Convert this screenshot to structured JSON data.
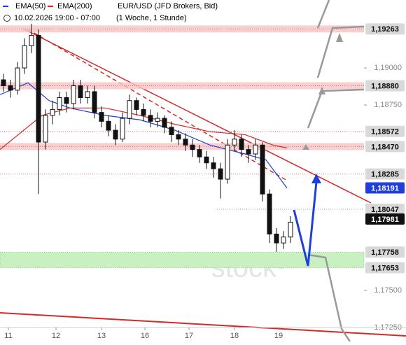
{
  "chart_data": {
    "type": "candlestick",
    "instrument": "EUR/USD (JFD Brokers, Bid)",
    "period": "10.02.2026 19:00 - 07:00",
    "interval": "(1 Woche, 1 Stunde)",
    "watermark": "stock³",
    "xlim": [
      -0.5,
      57.5
    ],
    "ylim": [
      1.17231,
      1.19458
    ],
    "xticks": [
      {
        "value": 0.7,
        "label": "11"
      },
      {
        "value": 7.5,
        "label": "12"
      },
      {
        "value": 14,
        "label": "13"
      },
      {
        "value": 20.2,
        "label": "16"
      },
      {
        "value": 26.5,
        "label": "17"
      },
      {
        "value": 33,
        "label": "18"
      },
      {
        "value": 39.3,
        "label": "19"
      }
    ],
    "yticks": [
      {
        "value": 1.19,
        "label": "1,19000"
      },
      {
        "value": 1.1875,
        "label": "1,18750"
      },
      {
        "value": 1.175,
        "label": "1,17500"
      },
      {
        "value": 1.1725,
        "label": "1,17250"
      }
    ],
    "candles": [
      [
        1.1892,
        1.1896,
        1.1884,
        1.1888
      ],
      [
        1.1888,
        1.1892,
        1.188,
        1.1885
      ],
      [
        1.1885,
        1.1904,
        1.1882,
        1.19
      ],
      [
        1.19,
        1.192,
        1.1896,
        1.1915
      ],
      [
        1.1915,
        1.193,
        1.191,
        1.1922
      ],
      [
        1.1922,
        1.1926,
        1.1815,
        1.185
      ],
      [
        1.185,
        1.1872,
        1.1845,
        1.1868
      ],
      [
        1.1868,
        1.1878,
        1.1862,
        1.1872
      ],
      [
        1.1872,
        1.1884,
        1.1868,
        1.188
      ],
      [
        1.188,
        1.1884,
        1.187,
        1.1876
      ],
      [
        1.1876,
        1.1892,
        1.1872,
        1.1888
      ],
      [
        1.1888,
        1.1892,
        1.1876,
        1.188
      ],
      [
        1.188,
        1.1888,
        1.1876,
        1.1884
      ],
      [
        1.1884,
        1.1888,
        1.1866,
        1.187
      ],
      [
        1.187,
        1.1874,
        1.186,
        1.1864
      ],
      [
        1.1864,
        1.1868,
        1.1854,
        1.1858
      ],
      [
        1.1858,
        1.1862,
        1.1848,
        1.1852
      ],
      [
        1.1852,
        1.187,
        1.185,
        1.1866
      ],
      [
        1.1866,
        1.1882,
        1.1862,
        1.1878
      ],
      [
        1.1878,
        1.188,
        1.1868,
        1.1872
      ],
      [
        1.1872,
        1.1876,
        1.1864,
        1.1868
      ],
      [
        1.1868,
        1.1872,
        1.186,
        1.1864
      ],
      [
        1.1864,
        1.187,
        1.186,
        1.1866
      ],
      [
        1.1866,
        1.1868,
        1.1856,
        1.186
      ],
      [
        1.186,
        1.1864,
        1.185,
        1.1855
      ],
      [
        1.1855,
        1.1858,
        1.1848,
        1.1852
      ],
      [
        1.1852,
        1.1856,
        1.1844,
        1.1848
      ],
      [
        1.1848,
        1.1852,
        1.184,
        1.1845
      ],
      [
        1.1845,
        1.1848,
        1.1836,
        1.184
      ],
      [
        1.184,
        1.1844,
        1.1832,
        1.1836
      ],
      [
        1.1836,
        1.184,
        1.1826,
        1.1832
      ],
      [
        1.1832,
        1.1836,
        1.1812,
        1.1825
      ],
      [
        1.1825,
        1.1852,
        1.1822,
        1.1848
      ],
      [
        1.1848,
        1.1858,
        1.1844,
        1.1852
      ],
      [
        1.1852,
        1.1855,
        1.184,
        1.1845
      ],
      [
        1.1845,
        1.1848,
        1.1836,
        1.1842
      ],
      [
        1.1842,
        1.1852,
        1.1838,
        1.1848
      ],
      [
        1.1848,
        1.185,
        1.181,
        1.1815
      ],
      [
        1.1815,
        1.1818,
        1.1782,
        1.1788
      ],
      [
        1.1788,
        1.1792,
        1.1776,
        1.1782
      ],
      [
        1.1782,
        1.179,
        1.1778,
        1.1786
      ],
      [
        1.1786,
        1.18,
        1.1782,
        1.1796
      ]
    ],
    "up_color": "#ffffff",
    "down_color": "#111111",
    "series": [
      {
        "name": "EMA(50)",
        "color": "#1f3fd8",
        "x": [
          -0.5,
          3.5,
          6.5,
          9.5,
          14.5,
          19.5,
          24.5,
          29.5,
          34.5,
          37.5,
          40.5
        ],
        "values": [
          1.1882,
          1.189,
          1.1878,
          1.1873,
          1.1868,
          1.1865,
          1.1858,
          1.1848,
          1.1842,
          1.1838,
          1.1819
        ]
      },
      {
        "name": "EMA(200)",
        "color": "#d42a2a",
        "x": [
          -0.5,
          5.5,
          9.5,
          14.5,
          19.5,
          24.5,
          29.5,
          34.5,
          38.5,
          40.5
        ],
        "values": [
          1.1845,
          1.1868,
          1.1873,
          1.1873,
          1.1868,
          1.1862,
          1.1857,
          1.1855,
          1.1848,
          1.1846
        ]
      }
    ],
    "levels": [
      {
        "value": 1.19263,
        "label": "1,19263",
        "style": "band",
        "color": "#d9d9d9"
      },
      {
        "value": 1.1888,
        "label": "1,18880",
        "style": "band",
        "color": "#d9d9d9"
      },
      {
        "value": 1.18572,
        "label": "1,18572",
        "style": "line",
        "color": "#d9d9d9"
      },
      {
        "value": 1.1847,
        "label": "1,18470",
        "style": "band",
        "color": "#d9d9d9"
      },
      {
        "value": 1.18285,
        "label": "1,18285",
        "style": "line",
        "color": "#d9d9d9"
      },
      {
        "value": 1.18191,
        "label": "1,18191",
        "style": "none",
        "color": "#1f3fd8"
      },
      {
        "value": 1.18047,
        "label": "1,18047",
        "style": "dotted",
        "color": "#d9d9d9"
      },
      {
        "value": 1.17981,
        "label": "1,17981",
        "style": "none",
        "color": "#111111"
      },
      {
        "value": 1.17758,
        "label": "1,17758",
        "style": "zone",
        "color": "#d9d9d9"
      },
      {
        "value": 1.17653,
        "label": "1,17653",
        "style": "zone",
        "color": "#d9d9d9"
      }
    ]
  }
}
